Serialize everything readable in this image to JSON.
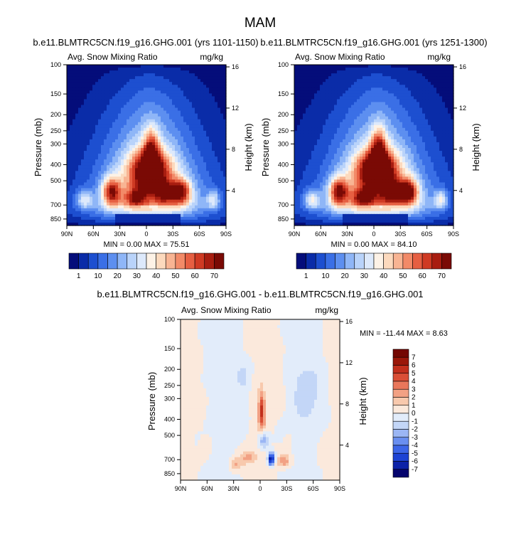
{
  "figure": {
    "title": "MAM"
  },
  "colors": {
    "abs_levels": [
      "#040d7a",
      "#0a2ca8",
      "#1d4fd0",
      "#3a6fe6",
      "#5d8ff0",
      "#8fb6f7",
      "#b9d3fa",
      "#dde9fb",
      "#fdf2e6",
      "#fcd9bd",
      "#f8b493",
      "#f28a68",
      "#e65f42",
      "#cf3a23",
      "#a81d10",
      "#7a0a05"
    ],
    "diff_levels": [
      "#05046e",
      "#0c22a8",
      "#1d43d4",
      "#3d66e8",
      "#6a8ff0",
      "#9bb6f4",
      "#c3d6f7",
      "#e2ecfa",
      "#fbe9dc",
      "#f8c9ad",
      "#f2a184",
      "#e9775b",
      "#da4f36",
      "#c22f1c",
      "#9a1709",
      "#740702"
    ]
  },
  "chart_data": [
    {
      "type": "heatmap",
      "run": "b.e11.BLMTRC5CN.f19_g16.GHG.001 (yrs 1101-1150)",
      "variable": "Avg. Snow Mixing Ratio",
      "units": "mg/kg",
      "ylabel_left": "Pressure (mb)",
      "ylabel_right": "Height (km)",
      "x_ticks": [
        "90N",
        "60N",
        "30N",
        "0",
        "30S",
        "60S",
        "90S"
      ],
      "p_ticks": [
        "100",
        "150",
        "200",
        "250",
        "300",
        "400",
        "500",
        "700",
        "850"
      ],
      "p_tick_values": [
        100,
        150,
        200,
        250,
        300,
        400,
        500,
        700,
        850
      ],
      "h_ticks": [
        "16",
        "12",
        "8",
        "4"
      ],
      "h_tick_values": [
        16,
        12,
        8,
        4
      ],
      "stats": "MIN =   0.00  MAX =  75.51",
      "colorbar_labels": [
        "1",
        "10",
        "20",
        "30",
        "40",
        "50",
        "60",
        "70"
      ],
      "max": 75.51
    },
    {
      "type": "heatmap",
      "run": "b.e11.BLMTRC5CN.f19_g16.GHG.001 (yrs 1251-1300)",
      "variable": "Avg. Snow Mixing Ratio",
      "units": "mg/kg",
      "ylabel_left": "Pressure (mb)",
      "ylabel_right": "Height (km)",
      "x_ticks": [
        "90N",
        "60N",
        "30N",
        "0",
        "30S",
        "60S",
        "90S"
      ],
      "p_ticks": [
        "100",
        "150",
        "200",
        "250",
        "300",
        "400",
        "500",
        "700",
        "850"
      ],
      "p_tick_values": [
        100,
        150,
        200,
        250,
        300,
        400,
        500,
        700,
        850
      ],
      "h_ticks": [
        "16",
        "12",
        "8",
        "4"
      ],
      "h_tick_values": [
        16,
        12,
        8,
        4
      ],
      "stats": "MIN =   0.00  MAX =  84.10",
      "colorbar_labels": [
        "1",
        "10",
        "20",
        "30",
        "40",
        "50",
        "60",
        "70"
      ],
      "max": 84.1
    },
    {
      "type": "heatmap",
      "run": "b.e11.BLMTRC5CN.f19_g16.GHG.001 - b.e11.BLMTRC5CN.f19_g16.GHG.001",
      "variable": "Avg. Snow Mixing Ratio",
      "units": "mg/kg",
      "ylabel_left": "Pressure (mb)",
      "ylabel_right": "Height (km)",
      "x_ticks": [
        "90N",
        "60N",
        "30N",
        "0",
        "30S",
        "60S",
        "90S"
      ],
      "p_ticks": [
        "100",
        "150",
        "200",
        "250",
        "300",
        "400",
        "500",
        "700",
        "850"
      ],
      "p_tick_values": [
        100,
        150,
        200,
        250,
        300,
        400,
        500,
        700,
        850
      ],
      "h_ticks": [
        "16",
        "12",
        "8",
        "4"
      ],
      "h_tick_values": [
        16,
        12,
        8,
        4
      ],
      "stats": "MIN = -11.44  MAX =   8.63",
      "colorbar_labels": [
        "7",
        "6",
        "5",
        "4",
        "3",
        "2",
        "1",
        "0",
        "-1",
        "-2",
        "-3",
        "-4",
        "-5",
        "-6",
        "-7"
      ],
      "min": -11.44,
      "max": 8.63
    }
  ]
}
